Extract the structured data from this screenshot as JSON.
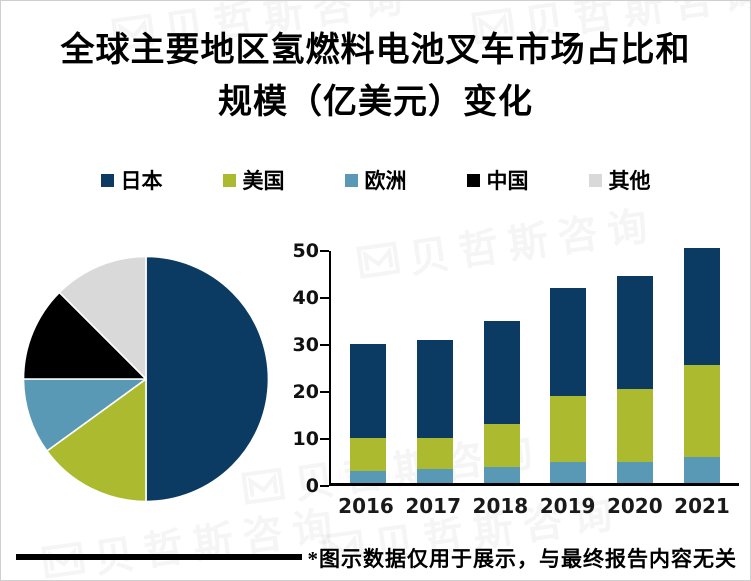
{
  "title": {
    "line1": "全球主要地区氢燃料电池叉车市场占比和",
    "line2": "规模（亿美元）变化"
  },
  "legend": {
    "items": [
      {
        "key": "japan",
        "label": "日本",
        "color": "#0B3A62"
      },
      {
        "key": "usa",
        "label": "美国",
        "color": "#ACBA2F"
      },
      {
        "key": "europe",
        "label": "欧洲",
        "color": "#5A99B5"
      },
      {
        "key": "china",
        "label": "中国",
        "color": "#000000"
      },
      {
        "key": "others",
        "label": "其他",
        "color": "#D9D9D9"
      }
    ]
  },
  "footer": {
    "note": "*图示数据仅用于展示，与最终报告内容无关"
  },
  "watermark": {
    "text": "贝哲斯咨询"
  },
  "chart_data": [
    {
      "type": "pie",
      "title": "全球主要地区氢燃料电池叉车市场占比（示意）",
      "labels": [
        "日本",
        "美国",
        "欧洲",
        "中国",
        "其他"
      ],
      "keys": [
        "japan",
        "usa",
        "europe",
        "china",
        "others"
      ],
      "values": [
        50,
        15,
        10,
        12.5,
        12.5
      ],
      "unit": "%",
      "colors": [
        "#0B3A62",
        "#ACBA2F",
        "#5A99B5",
        "#000000",
        "#D9D9D9"
      ],
      "start_angle_deg": 0,
      "direction": "clockwise",
      "slice_border_color": "#FFFFFF",
      "legend_position": "top",
      "data_labels": false
    },
    {
      "type": "bar",
      "stacked": true,
      "title": "全球主要地区氢燃料电池叉车市场规模（亿美元）变化",
      "categories": [
        "2016",
        "2017",
        "2018",
        "2019",
        "2020",
        "2021"
      ],
      "series": [
        {
          "key": "europe",
          "name": "欧洲",
          "color": "#5A99B5",
          "values": [
            2.5,
            3,
            3.5,
            4.5,
            4.5,
            5.5
          ]
        },
        {
          "key": "usa",
          "name": "美国",
          "color": "#ACBA2F",
          "values": [
            7,
            6.5,
            9,
            14,
            15.5,
            19.5
          ]
        },
        {
          "key": "japan",
          "name": "日本",
          "color": "#0B3A62",
          "values": [
            20,
            21,
            22,
            23,
            24,
            25
          ]
        }
      ],
      "totals": [
        29.5,
        30.5,
        34.5,
        41.5,
        44,
        50
      ],
      "xlabel": "",
      "ylabel": "",
      "ylim": [
        0,
        50
      ],
      "yticks": [
        0,
        10,
        20,
        30,
        40,
        50
      ],
      "grid": false,
      "axis_color": "#000000"
    }
  ]
}
